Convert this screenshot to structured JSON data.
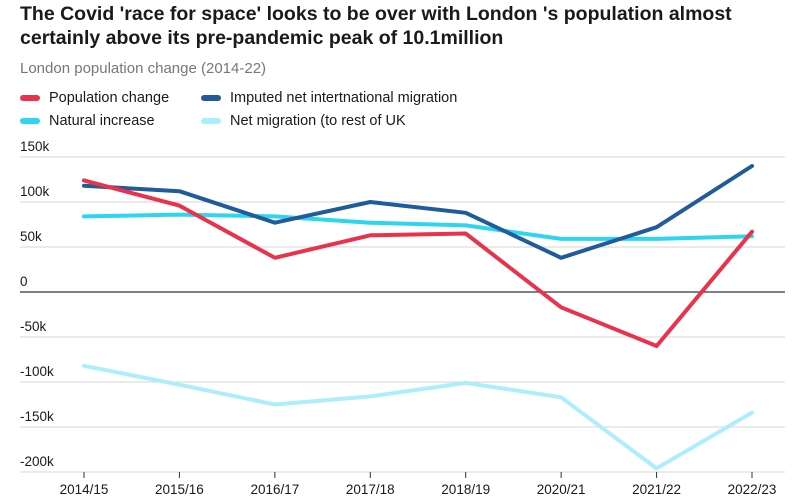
{
  "title": "The Covid 'race for space' looks to be over with London 's population almost certainly above its pre-pandemic peak of 10.1million",
  "subtitle": "London population change (2014-22)",
  "chart_data": {
    "type": "line",
    "title": "The Covid 'race for space' looks to be over with London 's population almost certainly above its pre-pandemic peak of 10.1million",
    "subtitle": "London population change (2014-22)",
    "categories": [
      "2014/15",
      "2015/16",
      "2016/17",
      "2017/18",
      "2018/19",
      "2020/21",
      "2021/22",
      "2022/23"
    ],
    "y_ticks": [
      150000,
      100000,
      50000,
      0,
      -50000,
      -100000,
      -150000,
      -200000
    ],
    "y_tick_labels": [
      "150k",
      "100k",
      "50k",
      "0",
      "-50k",
      "-100k",
      "-150k",
      "-200k"
    ],
    "ylim": [
      -200000,
      150000
    ],
    "grid": true,
    "legend_placement": "top-left",
    "series": [
      {
        "name": "Population change",
        "color": "#e8334a",
        "values": [
          124000,
          96000,
          38000,
          63000,
          65000,
          -17000,
          -60000,
          67000
        ]
      },
      {
        "name": "Imputed net intertnational migration",
        "color": "#1f5c99",
        "values": [
          118000,
          112000,
          77000,
          100000,
          88000,
          38000,
          72000,
          140000
        ]
      },
      {
        "name": "Natural increase",
        "color": "#2ed5f0",
        "values": [
          84000,
          86000,
          84000,
          77000,
          74000,
          59000,
          59000,
          62000
        ]
      },
      {
        "name": "Net migration (to rest of UK",
        "color": "#aeeefc",
        "values": [
          -82000,
          -103000,
          -125000,
          -116000,
          -101000,
          -117000,
          -196000,
          -134000
        ]
      }
    ]
  }
}
